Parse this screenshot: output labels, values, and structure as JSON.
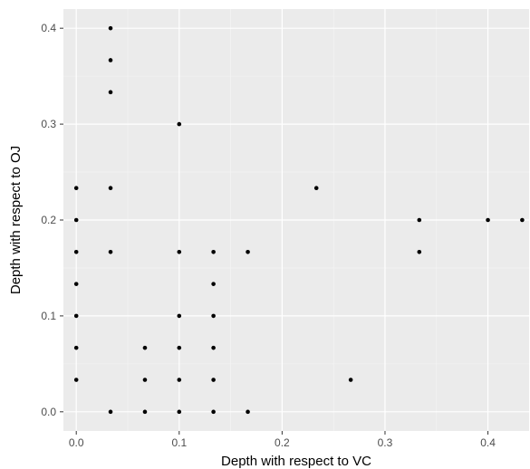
{
  "chart_data": {
    "type": "scatter",
    "xlabel": "Depth with respect to VC",
    "ylabel": "Depth with respect to OJ",
    "xlim": [
      -0.0125,
      0.44
    ],
    "ylim": [
      -0.02,
      0.42
    ],
    "x_ticks": [
      {
        "value": 0.0,
        "label": "0.0"
      },
      {
        "value": 0.1,
        "label": "0.1"
      },
      {
        "value": 0.2,
        "label": "0.2"
      },
      {
        "value": 0.3,
        "label": "0.3"
      },
      {
        "value": 0.4,
        "label": "0.4"
      }
    ],
    "y_ticks": [
      {
        "value": 0.0,
        "label": "0.0"
      },
      {
        "value": 0.1,
        "label": "0.1"
      },
      {
        "value": 0.2,
        "label": "0.2"
      },
      {
        "value": 0.3,
        "label": "0.3"
      },
      {
        "value": 0.4,
        "label": "0.4"
      }
    ],
    "grid": true,
    "legend": "none",
    "colors": {
      "panel_background": "#ebebeb",
      "grid_major": "#ffffff",
      "grid_minor": "#f5f5f5",
      "point": "#000000",
      "tick_text": "#4d4d4d",
      "tick_mark": "#333333"
    },
    "points": [
      {
        "x": 0.0,
        "y": 0.0333
      },
      {
        "x": 0.0,
        "y": 0.0667
      },
      {
        "x": 0.0,
        "y": 0.1
      },
      {
        "x": 0.0,
        "y": 0.1333
      },
      {
        "x": 0.0,
        "y": 0.1667
      },
      {
        "x": 0.0,
        "y": 0.2
      },
      {
        "x": 0.0,
        "y": 0.2333
      },
      {
        "x": 0.0333,
        "y": 0.0
      },
      {
        "x": 0.0333,
        "y": 0.1667
      },
      {
        "x": 0.0333,
        "y": 0.2333
      },
      {
        "x": 0.0333,
        "y": 0.3333
      },
      {
        "x": 0.0333,
        "y": 0.3667
      },
      {
        "x": 0.0333,
        "y": 0.4
      },
      {
        "x": 0.0667,
        "y": 0.0
      },
      {
        "x": 0.0667,
        "y": 0.0333
      },
      {
        "x": 0.0667,
        "y": 0.0667
      },
      {
        "x": 0.1,
        "y": 0.0
      },
      {
        "x": 0.1,
        "y": 0.0333
      },
      {
        "x": 0.1,
        "y": 0.0667
      },
      {
        "x": 0.1,
        "y": 0.1
      },
      {
        "x": 0.1,
        "y": 0.1667
      },
      {
        "x": 0.1,
        "y": 0.3
      },
      {
        "x": 0.1333,
        "y": 0.0
      },
      {
        "x": 0.1333,
        "y": 0.0333
      },
      {
        "x": 0.1333,
        "y": 0.0667
      },
      {
        "x": 0.1333,
        "y": 0.1
      },
      {
        "x": 0.1333,
        "y": 0.1333
      },
      {
        "x": 0.1333,
        "y": 0.1667
      },
      {
        "x": 0.1667,
        "y": 0.0
      },
      {
        "x": 0.1667,
        "y": 0.1667
      },
      {
        "x": 0.2333,
        "y": 0.2333
      },
      {
        "x": 0.2667,
        "y": 0.0333
      },
      {
        "x": 0.3333,
        "y": 0.1667
      },
      {
        "x": 0.3333,
        "y": 0.2
      },
      {
        "x": 0.4,
        "y": 0.2
      },
      {
        "x": 0.4333,
        "y": 0.2
      }
    ]
  }
}
